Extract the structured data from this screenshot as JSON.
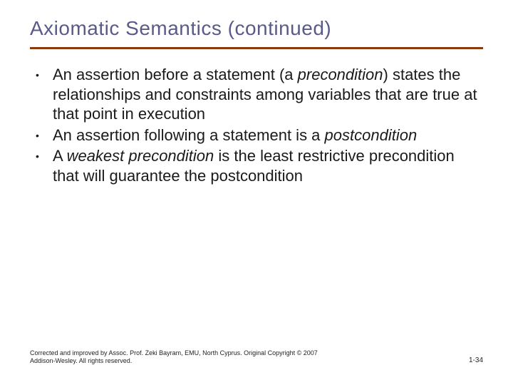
{
  "title": "Axiomatic Semantics (continued)",
  "colors": {
    "title_color": "#5a5a8a",
    "rule_color": "#8b3a0e",
    "body_text": "#1a1a1a",
    "background": "#ffffff"
  },
  "typography": {
    "title_fontsize": 28,
    "body_fontsize": 22,
    "footer_fontsize": 9
  },
  "bullets": [
    {
      "pre": "An assertion before a statement (a ",
      "em": "precondition",
      "post": ") states the relationships and constraints among variables that are true at that point in execution"
    },
    {
      "pre": "An assertion following a statement is a ",
      "em": "postcondition",
      "post": ""
    },
    {
      "pre": "A ",
      "em": "weakest precondition",
      "post": " is the least restrictive precondition that will guarantee the postcondition"
    }
  ],
  "footer": {
    "left": "Corrected and improved by Assoc. Prof. Zeki Bayram, EMU, North Cyprus. Original Copyright © 2007 Addison-Wesley. All rights reserved.",
    "right": "1-34"
  }
}
